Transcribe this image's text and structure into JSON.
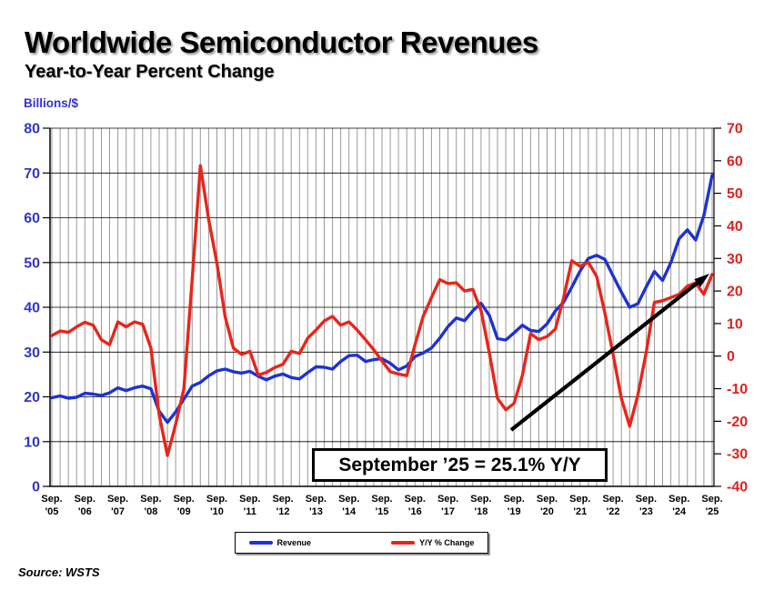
{
  "header": {
    "title": "Worldwide Semiconductor Revenues",
    "subtitle": "Year-to-Year Percent Change"
  },
  "source_note": "Source: WSTS",
  "annotation": {
    "text": "September ’25 = 25.1% Y/Y",
    "points_to": "final Y/Y % Change value (Sep 2025)"
  },
  "chart_data": {
    "type": "line",
    "title": "Worldwide Semiconductor Revenues",
    "subtitle": "Year-to-Year Percent Change",
    "x_range": "Sep 2005 to Sep 2025, monthly series; values sampled quarterly (Sep, Dec, Mar, Jun)",
    "left_axis": {
      "title": "Billions/$",
      "min": 0,
      "max": 80,
      "step": 10,
      "color": "#3333cc"
    },
    "right_axis": {
      "min": -40,
      "max": 70,
      "step": 10,
      "color": "#dd2222"
    },
    "x_axis": {
      "month": "Sep.",
      "years": [
        "'05",
        "'06",
        "'07",
        "'08",
        "'09",
        "'10",
        "'11",
        "'12",
        "'13",
        "'14",
        "'15",
        "'16",
        "'17",
        "'18",
        "'19",
        "'20",
        "'21",
        "'22",
        "'23",
        "'24",
        "'25"
      ]
    },
    "grid": {
      "vertical": "quarterly gray lines",
      "horizontal": "black line every 10 units of left scale"
    },
    "legend_position": "bottom center",
    "key_points": {
      "sep_2025_yoy_pct": 25.1,
      "sep_2025_revenue_billions": 69.5
    },
    "series": [
      {
        "name": "Revenue",
        "axis": "left",
        "unit": "US$ billions",
        "color": "#1e32d0",
        "values": [
          19.8,
          20.2,
          19.7,
          19.9,
          20.8,
          20.6,
          20.3,
          20.9,
          22.0,
          21.4,
          22.0,
          22.4,
          21.8,
          16.8,
          14.3,
          16.6,
          19.5,
          22.4,
          23.2,
          24.7,
          25.8,
          26.2,
          25.6,
          25.3,
          25.7,
          24.6,
          23.8,
          24.6,
          25.1,
          24.3,
          24.0,
          25.4,
          26.7,
          26.6,
          26.2,
          27.9,
          29.2,
          29.3,
          27.9,
          28.3,
          28.5,
          27.5,
          26.0,
          26.9,
          29.0,
          29.8,
          30.9,
          33.1,
          35.7,
          37.6,
          37.0,
          39.2,
          40.9,
          38.2,
          33.0,
          32.7,
          34.3,
          36.0,
          34.8,
          34.6,
          36.3,
          39.2,
          41.1,
          44.5,
          48.1,
          50.9,
          51.6,
          50.7,
          47.0,
          43.4,
          40.0,
          40.8,
          44.5,
          48.0,
          46.0,
          50.0,
          55.3,
          57.3,
          55.0,
          60.5,
          69.5
        ]
      },
      {
        "name": "Y/Y % Change",
        "axis": "right",
        "unit": "percent",
        "color": "#e8251a",
        "values": [
          6.3,
          7.7,
          7.3,
          9.0,
          10.4,
          9.5,
          5.0,
          3.5,
          10.5,
          9.0,
          10.5,
          9.8,
          2.5,
          -18.0,
          -30.5,
          -21.0,
          -10.0,
          23.5,
          58.5,
          42.0,
          28.5,
          12.0,
          2.5,
          0.5,
          1.5,
          -5.8,
          -5.0,
          -3.5,
          -2.5,
          1.5,
          0.8,
          5.5,
          8.0,
          10.8,
          12.2,
          9.5,
          10.5,
          8.0,
          5.0,
          2.0,
          -1.5,
          -4.8,
          -5.5,
          -6.0,
          3.5,
          12.3,
          18.0,
          23.5,
          22.3,
          22.5,
          20.0,
          20.5,
          14.0,
          1.0,
          -13.0,
          -16.5,
          -14.5,
          -6.0,
          6.9,
          5.1,
          6.0,
          8.3,
          17.8,
          29.3,
          27.6,
          28.8,
          24.5,
          13.3,
          0.5,
          -13.0,
          -21.5,
          -12.0,
          1.0,
          16.5,
          17.0,
          18.0,
          19.0,
          21.5,
          22.5,
          19.0,
          25.1
        ]
      }
    ]
  }
}
